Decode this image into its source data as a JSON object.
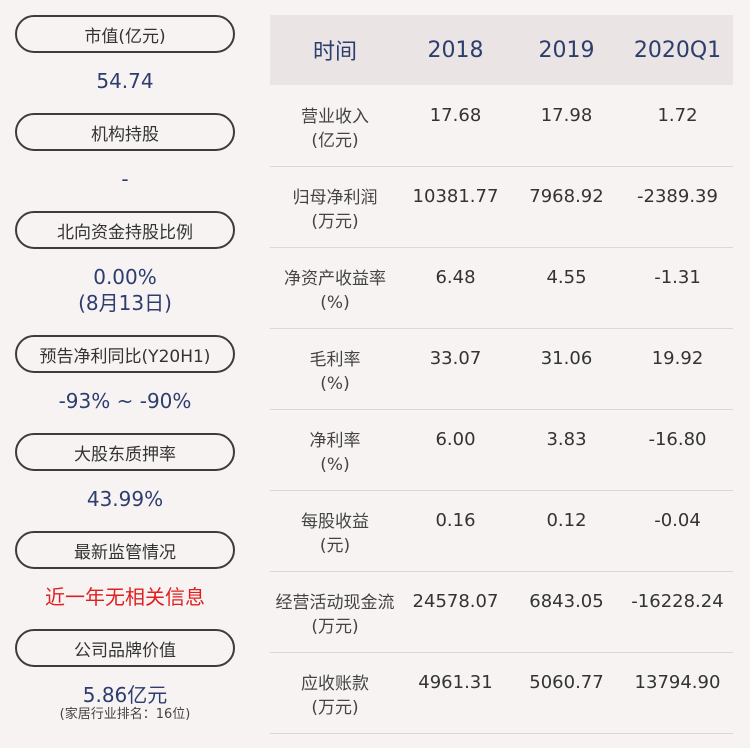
{
  "left": [
    {
      "label": "市值(亿元)",
      "value": "54.74"
    },
    {
      "label": "机构持股",
      "value": "-"
    },
    {
      "label": "北向资金持股比例",
      "value": "0.00%",
      "value2": "(8月13日)"
    },
    {
      "label": "预告净利同比(Y20H1)",
      "value": "-93% ~ -90%"
    },
    {
      "label": "大股东质押率",
      "value": "43.99%"
    },
    {
      "label": "最新监管情况",
      "value": "近一年无相关信息"
    },
    {
      "label": "公司品牌价值",
      "value": "5.86亿元",
      "note": "(家居行业排名：16位)"
    }
  ],
  "table": {
    "headers": [
      "时间",
      "2018",
      "2019",
      "2020Q1"
    ],
    "rows": [
      {
        "label": "营业收入",
        "unit": "(亿元)",
        "values": [
          "17.68",
          "17.98",
          "1.72"
        ]
      },
      {
        "label": "归母净利润",
        "unit": "(万元)",
        "values": [
          "10381.77",
          "7968.92",
          "-2389.39"
        ]
      },
      {
        "label": "净资产收益率",
        "unit": "(%)",
        "values": [
          "6.48",
          "4.55",
          "-1.31"
        ]
      },
      {
        "label": "毛利率",
        "unit": "(%)",
        "values": [
          "33.07",
          "31.06",
          "19.92"
        ]
      },
      {
        "label": "净利率",
        "unit": "(%)",
        "values": [
          "6.00",
          "3.83",
          "-16.80"
        ]
      },
      {
        "label": "每股收益",
        "unit": "(元)",
        "values": [
          "0.16",
          "0.12",
          "-0.04"
        ]
      },
      {
        "label": "经营活动现金流",
        "unit": "(万元)",
        "values": [
          "24578.07",
          "6843.05",
          "-16228.24"
        ]
      },
      {
        "label": "应收账款",
        "unit": "(万元)",
        "values": [
          "4961.31",
          "5060.77",
          "13794.90"
        ]
      }
    ]
  }
}
